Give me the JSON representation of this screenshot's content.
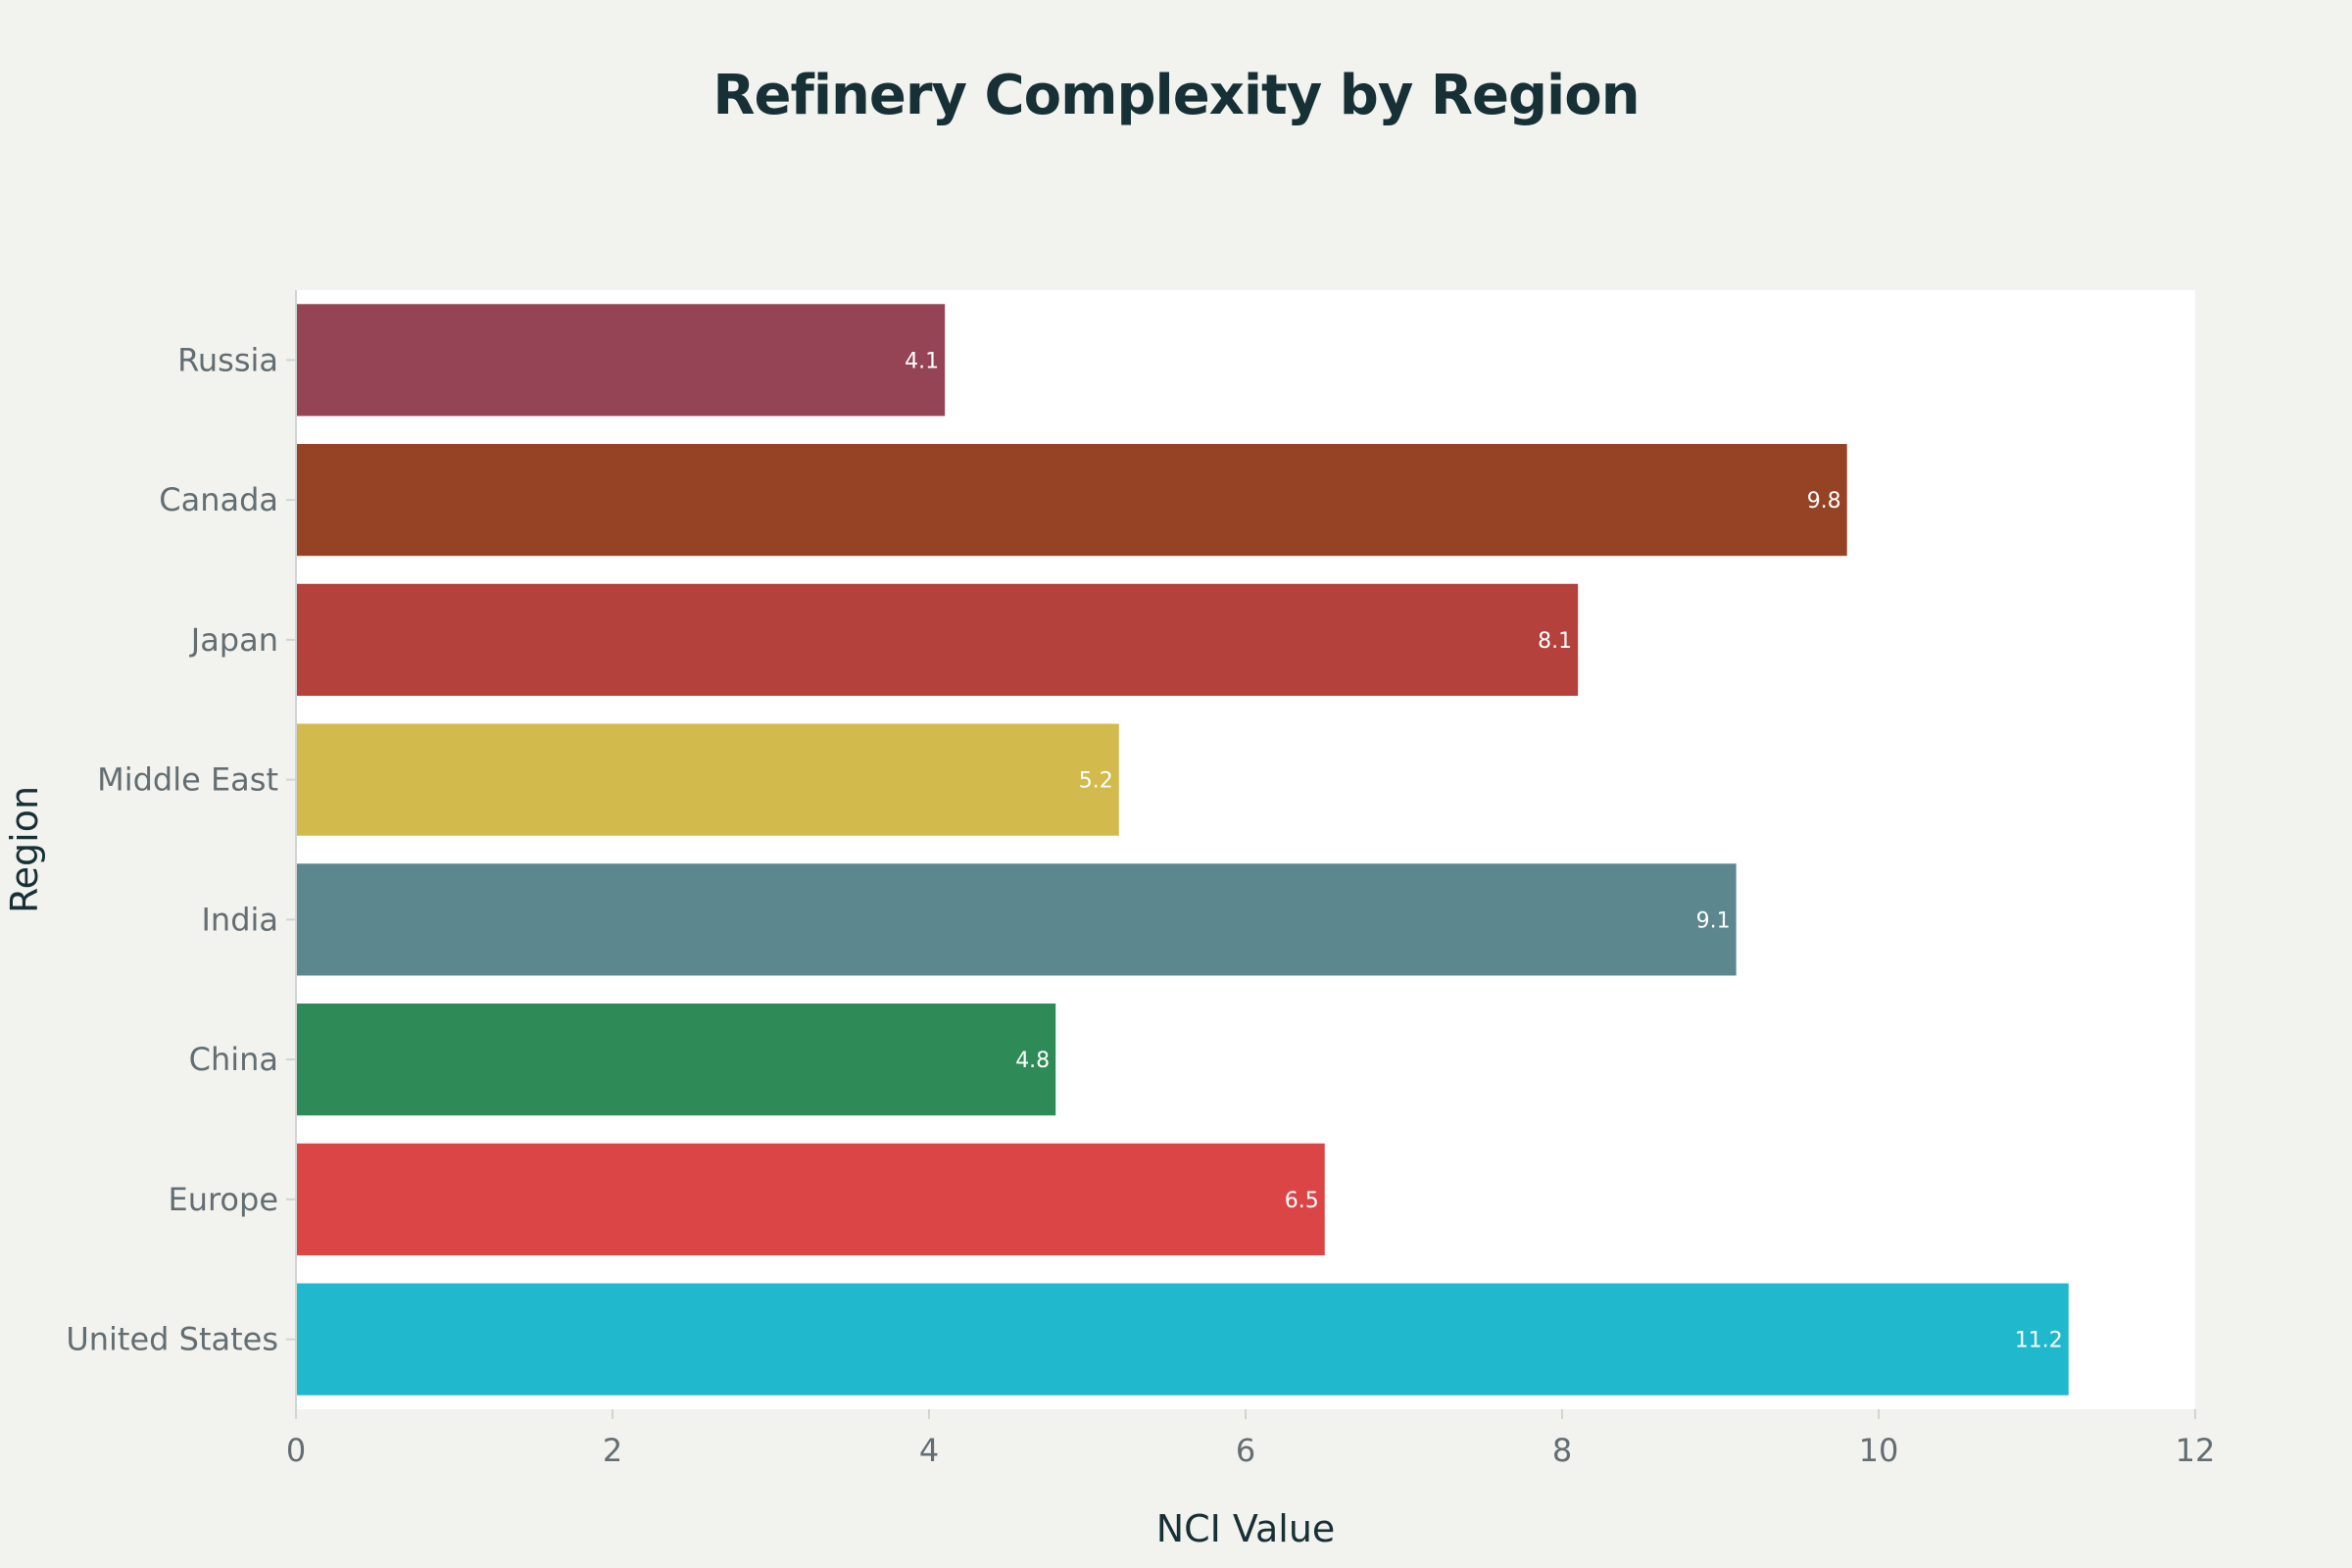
{
  "chart_data": {
    "type": "bar",
    "orientation": "horizontal",
    "title": "Refinery Complexity by Region",
    "xlabel": "NCI Value",
    "ylabel": "Region",
    "xlim": [
      0,
      12
    ],
    "x_ticks": [
      0,
      2,
      4,
      6,
      8,
      10,
      12
    ],
    "categories": [
      "United States",
      "Europe",
      "China",
      "India",
      "Middle East",
      "Japan",
      "Canada",
      "Russia"
    ],
    "values": [
      11.2,
      6.5,
      4.8,
      9.1,
      5.2,
      8.1,
      9.8,
      4.1
    ],
    "value_labels": [
      "11.2",
      "6.5",
      "4.8",
      "9.1",
      "5.2",
      "8.1",
      "9.8",
      "4.1"
    ],
    "colors": [
      "#1fb8cd",
      "#db4545",
      "#2e8b57",
      "#5d878f",
      "#d2ba4c",
      "#b4413c",
      "#964325",
      "#944454"
    ],
    "grid": false,
    "legend": "none"
  },
  "style": {
    "page_background": "#f2f2ee",
    "plot_background": "#ffffff"
  }
}
